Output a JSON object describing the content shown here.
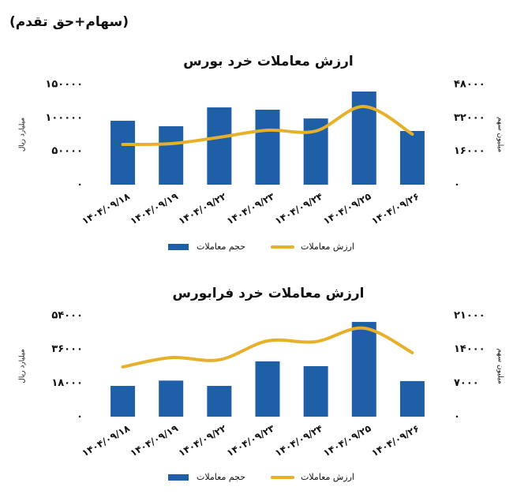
{
  "header": "(سهام+حق تقدم)",
  "chart_data": [
    {
      "type": "combo",
      "title": "ارزش معاملات خرد بورس",
      "y_label": "میلیارد ریال",
      "y2_label": "میلیون سهم",
      "categories": [
        "۱۴۰۴/۰۹/۱۸",
        "۱۴۰۴/۰۹/۱۹",
        "۱۴۰۴/۰۹/۲۲",
        "۱۴۰۴/۰۹/۲۳",
        "۱۴۰۴/۰۹/۲۴",
        "۱۴۰۴/۰۹/۲۵",
        "۱۴۰۴/۰۹/۲۶"
      ],
      "series": [
        {
          "name": "حجم معاملات",
          "type": "bar",
          "axis": "y2",
          "color": "#1f5fa8",
          "values": [
            30600,
            28000,
            37000,
            35900,
            31700,
            44600,
            25700
          ]
        },
        {
          "name": "ارزش معاملات",
          "type": "line",
          "axis": "y",
          "color": "#e6b02a",
          "values": [
            60200,
            61400,
            70900,
            81500,
            80300,
            117000,
            75600
          ]
        }
      ],
      "ylim": [
        0,
        150000
      ],
      "yticks": [
        {
          "value": 0,
          "label": "۰"
        },
        {
          "value": 50000,
          "label": "۵۰۰۰۰"
        },
        {
          "value": 100000,
          "label": "۱۰۰۰۰۰"
        },
        {
          "value": 150000,
          "label": "۱۵۰۰۰۰"
        }
      ],
      "y2lim": [
        0,
        48000
      ],
      "y2ticks": [
        {
          "value": 0,
          "label": "۰"
        },
        {
          "value": 16000,
          "label": "۱۶۰۰۰"
        },
        {
          "value": 32000,
          "label": "۳۲۰۰۰"
        },
        {
          "value": 48000,
          "label": "۴۸۰۰۰"
        }
      ],
      "legend": "bottom"
    },
    {
      "type": "combo",
      "title": "ارزش معاملات خرد فرابورس",
      "y_label": "میلیارد ریال",
      "y2_label": "میلیون سهم",
      "categories": [
        "۱۴۰۴/۰۹/۱۸",
        "۱۴۰۴/۰۹/۱۹",
        "۱۴۰۴/۰۹/۲۲",
        "۱۴۰۴/۰۹/۲۳",
        "۱۴۰۴/۰۹/۲۴",
        "۱۴۰۴/۰۹/۲۵",
        "۱۴۰۴/۰۹/۲۶"
      ],
      "series": [
        {
          "name": "حجم معاملات",
          "type": "bar",
          "axis": "y2",
          "color": "#1f5fa8",
          "values": [
            6400,
            7500,
            6400,
            11500,
            10500,
            19700,
            7400
          ]
        },
        {
          "name": "ارزش معاملات",
          "type": "line",
          "axis": "y",
          "color": "#e6b02a",
          "values": [
            26600,
            31600,
            30400,
            40500,
            40100,
            47300,
            34200
          ]
        }
      ],
      "ylim": [
        0,
        54000
      ],
      "yticks": [
        {
          "value": 0,
          "label": "۰"
        },
        {
          "value": 18000,
          "label": "۱۸۰۰۰"
        },
        {
          "value": 36000,
          "label": "۳۶۰۰۰"
        },
        {
          "value": 54000,
          "label": "۵۴۰۰۰"
        }
      ],
      "y2lim": [
        0,
        21000
      ],
      "y2ticks": [
        {
          "value": 0,
          "label": "۰"
        },
        {
          "value": 7000,
          "label": "۷۰۰۰"
        },
        {
          "value": 14000,
          "label": "۱۴۰۰۰"
        },
        {
          "value": 21000,
          "label": "۲۱۰۰۰"
        }
      ],
      "legend": "bottom"
    }
  ]
}
